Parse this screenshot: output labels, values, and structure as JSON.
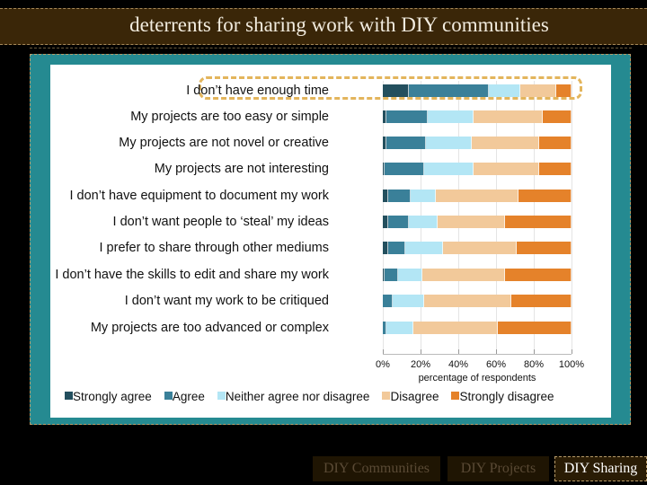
{
  "header": {
    "title": "deterrents for sharing work with DIY communities"
  },
  "nav": {
    "items": [
      {
        "label": "DIY Communities",
        "active": false
      },
      {
        "label": "DIY Projects",
        "active": false
      },
      {
        "label": "DIY Sharing",
        "active": true
      }
    ]
  },
  "colors": {
    "strongly_agree": "#234f5e",
    "agree": "#3a8099",
    "neutral": "#b3e6f5",
    "disagree": "#f2c99a",
    "strongly_disagree": "#e5822a",
    "highlight": "#e3b55c",
    "panel": "#258a91",
    "title_bar": "#3a2608"
  },
  "chart_data": {
    "type": "bar",
    "orientation": "horizontal",
    "stacked": true,
    "title": "deterrents for sharing work with DIY communities",
    "xlabel": "percentage of respondents",
    "ylabel": "",
    "xlim": [
      0,
      100
    ],
    "x_ticks": [
      "0%",
      "20%",
      "40%",
      "60%",
      "80%",
      "100%"
    ],
    "legend_position": "bottom",
    "grid": true,
    "highlighted_category": "I don’t have enough time",
    "categories": [
      "I don’t have enough time",
      "My projects are too easy or simple",
      "My projects are not novel or creative",
      "My projects are not interesting",
      "I don’t have equipment to document my work",
      "I don’t want people to ‘steal’ my ideas",
      "I prefer to share through other mediums",
      "I don’t have the skills to edit and share my work",
      "I don’t want my work to be critiqued",
      "My projects are too advanced or complex"
    ],
    "series": [
      {
        "name": "Strongly agree",
        "values": [
          14,
          2,
          2,
          1,
          3,
          3,
          3,
          1,
          0,
          0
        ]
      },
      {
        "name": "Agree",
        "values": [
          42,
          22,
          21,
          21,
          12,
          11,
          9,
          7,
          5,
          2
        ]
      },
      {
        "name": "Neither agree nor disagree",
        "values": [
          17,
          24,
          24,
          26,
          13,
          15,
          20,
          13,
          17,
          14
        ]
      },
      {
        "name": "Disagree",
        "values": [
          19,
          37,
          36,
          35,
          44,
          36,
          39,
          44,
          46,
          45
        ]
      },
      {
        "name": "Strongly disagree",
        "values": [
          8,
          15,
          17,
          17,
          28,
          35,
          29,
          35,
          32,
          39
        ]
      }
    ]
  }
}
